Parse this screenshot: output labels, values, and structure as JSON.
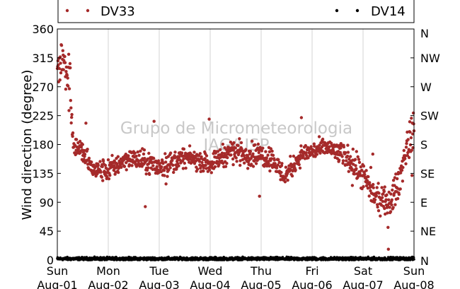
{
  "chart_data": {
    "type": "scatter",
    "ylabel": "Wind direction (degree)",
    "ylim": [
      0,
      360
    ],
    "yticks": [
      0,
      45,
      90,
      135,
      180,
      225,
      270,
      315,
      360
    ],
    "y2ticks": [
      "N",
      "NE",
      "E",
      "SE",
      "S",
      "SW",
      "W",
      "NW",
      "N"
    ],
    "xlim": [
      "2016-08-01",
      "2016-08-08"
    ],
    "xticks": [
      {
        "day": "Sun",
        "date": "Aug-01"
      },
      {
        "day": "Mon",
        "date": "Aug-02"
      },
      {
        "day": "Tue",
        "date": "Aug-03"
      },
      {
        "day": "Wed",
        "date": "Aug-04"
      },
      {
        "day": "Thu",
        "date": "Aug-05"
      },
      {
        "day": "Fri",
        "date": "Aug-06"
      },
      {
        "day": "Sat",
        "date": "Aug-07"
      },
      {
        "day": "Sun",
        "date": "Aug-08"
      }
    ],
    "grid": "vertical",
    "legend_position": "top",
    "watermark": [
      "Grupo de Micrometeorologia",
      "IAG/USP"
    ],
    "series": [
      {
        "name": "DV33",
        "color": "#a52a2a",
        "marker": "dot",
        "trend": [
          {
            "day": 0.0,
            "deg": 295,
            "spread": 30
          },
          {
            "day": 0.12,
            "deg": 320,
            "spread": 25
          },
          {
            "day": 0.25,
            "deg": 270,
            "spread": 40
          },
          {
            "day": 0.32,
            "deg": 180,
            "spread": 15
          },
          {
            "day": 0.5,
            "deg": 168,
            "spread": 15
          },
          {
            "day": 0.7,
            "deg": 140,
            "spread": 12
          },
          {
            "day": 1.0,
            "deg": 140,
            "spread": 15
          },
          {
            "day": 1.4,
            "deg": 160,
            "spread": 12
          },
          {
            "day": 1.8,
            "deg": 150,
            "spread": 15
          },
          {
            "day": 2.0,
            "deg": 145,
            "spread": 15
          },
          {
            "day": 2.5,
            "deg": 160,
            "spread": 12
          },
          {
            "day": 3.0,
            "deg": 150,
            "spread": 12
          },
          {
            "day": 3.4,
            "deg": 170,
            "spread": 15
          },
          {
            "day": 3.8,
            "deg": 165,
            "spread": 15
          },
          {
            "day": 4.2,
            "deg": 160,
            "spread": 15
          },
          {
            "day": 4.45,
            "deg": 130,
            "spread": 15
          },
          {
            "day": 4.8,
            "deg": 165,
            "spread": 12
          },
          {
            "day": 5.3,
            "deg": 175,
            "spread": 12
          },
          {
            "day": 5.7,
            "deg": 160,
            "spread": 15
          },
          {
            "day": 6.0,
            "deg": 130,
            "spread": 20
          },
          {
            "day": 6.2,
            "deg": 100,
            "spread": 15
          },
          {
            "day": 6.5,
            "deg": 85,
            "spread": 20
          },
          {
            "day": 6.7,
            "deg": 120,
            "spread": 20
          },
          {
            "day": 6.85,
            "deg": 175,
            "spread": 20
          },
          {
            "day": 7.0,
            "deg": 200,
            "spread": 25
          }
        ]
      },
      {
        "name": "DV14",
        "color": "#000000",
        "marker": "dot",
        "trend": [
          {
            "day": 0.0,
            "deg": 2,
            "spread": 2
          },
          {
            "day": 7.0,
            "deg": 2,
            "spread": 2
          }
        ]
      }
    ]
  }
}
